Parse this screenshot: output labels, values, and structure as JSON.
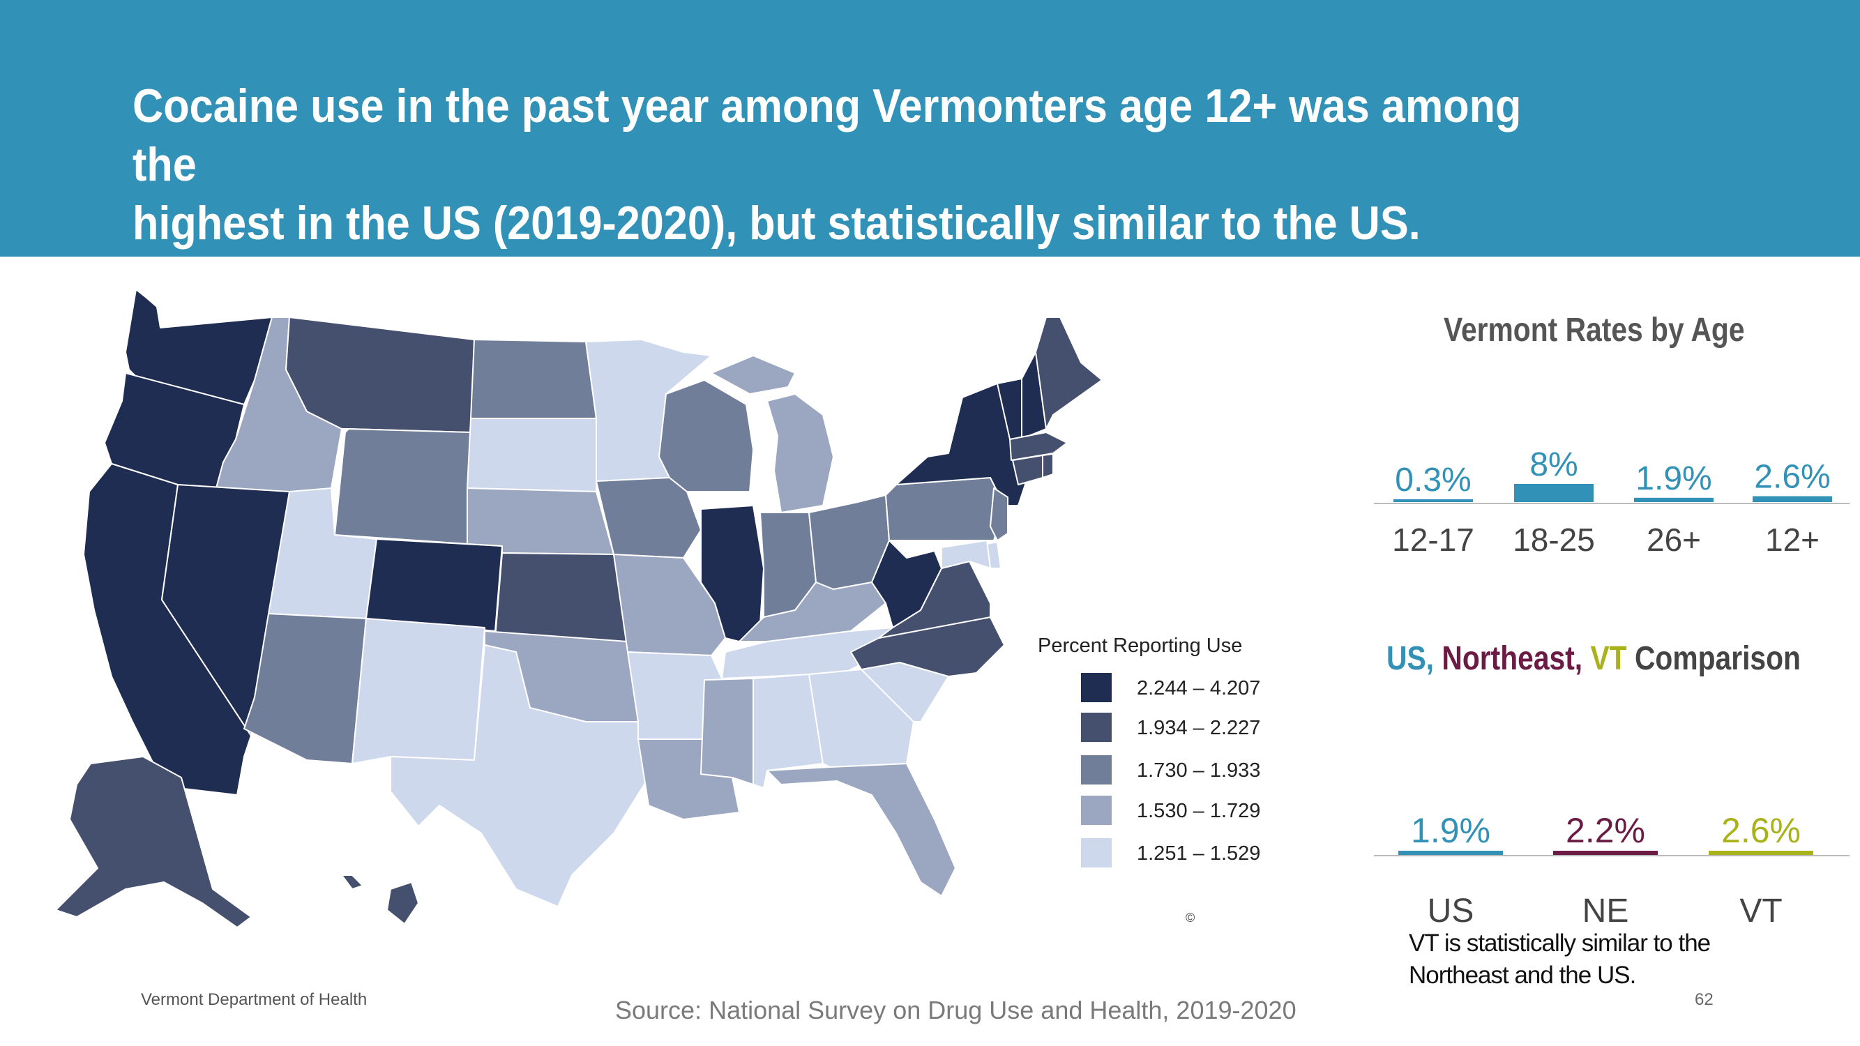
{
  "slide": {
    "title_line1": "Cocaine use in the past year among Vermonters age 12+ was among the",
    "title_line2": "highest in the US (2019-2020),  but statistically similar to the US.",
    "footer_org": "Vermont Department of Health",
    "footer_source": "Source: National Survey on Drug Use and Health, 2019-2020",
    "page_number": "62",
    "copyright_mark": "©",
    "banner_color": "#3291b6"
  },
  "map": {
    "legend_title": "Percent Reporting  Use",
    "legend": [
      {
        "label": "2.244 – 4.207",
        "color": "#1f2d52"
      },
      {
        "label": "1.934 – 2.227",
        "color": "#45506f"
      },
      {
        "label": "1.730 – 1.933",
        "color": "#717e99"
      },
      {
        "label": "1.530 – 1.729",
        "color": "#9ba7c1"
      },
      {
        "label": "1.251 – 1.529",
        "color": "#cdd8ed"
      }
    ]
  },
  "chart_data": [
    {
      "type": "bar",
      "title": "Vermont Rates by Age",
      "categories": [
        "12-17",
        "18-25",
        "26+",
        "12+"
      ],
      "values": [
        0.3,
        8,
        1.9,
        2.6
      ],
      "value_labels": [
        "0.3%",
        "8%",
        "1.9%",
        "2.6%"
      ],
      "unit": "%",
      "colors": [
        "#3291b6",
        "#3291b6",
        "#3291b6",
        "#3291b6"
      ]
    },
    {
      "type": "bar",
      "title_parts": [
        {
          "text": "US",
          "color": "#3291b6"
        },
        {
          "text": ", ",
          "color": "#3291b6"
        },
        {
          "text": "Northeast",
          "color": "#6b1b44"
        },
        {
          "text": ", ",
          "color": "#6b1b44"
        },
        {
          "text": "VT",
          "color": "#aab21a"
        },
        {
          "text": " Comparison",
          "color": "#444444"
        }
      ],
      "categories": [
        "US",
        "NE",
        "VT"
      ],
      "values": [
        1.9,
        2.2,
        2.6
      ],
      "value_labels": [
        "1.9%",
        "2.2%",
        "2.6%"
      ],
      "unit": "%",
      "colors": [
        "#3291b6",
        "#6b1b44",
        "#aab21a"
      ]
    }
  ],
  "note": {
    "line1": "VT is statistically similar to the",
    "line2": "Northeast and the US."
  }
}
